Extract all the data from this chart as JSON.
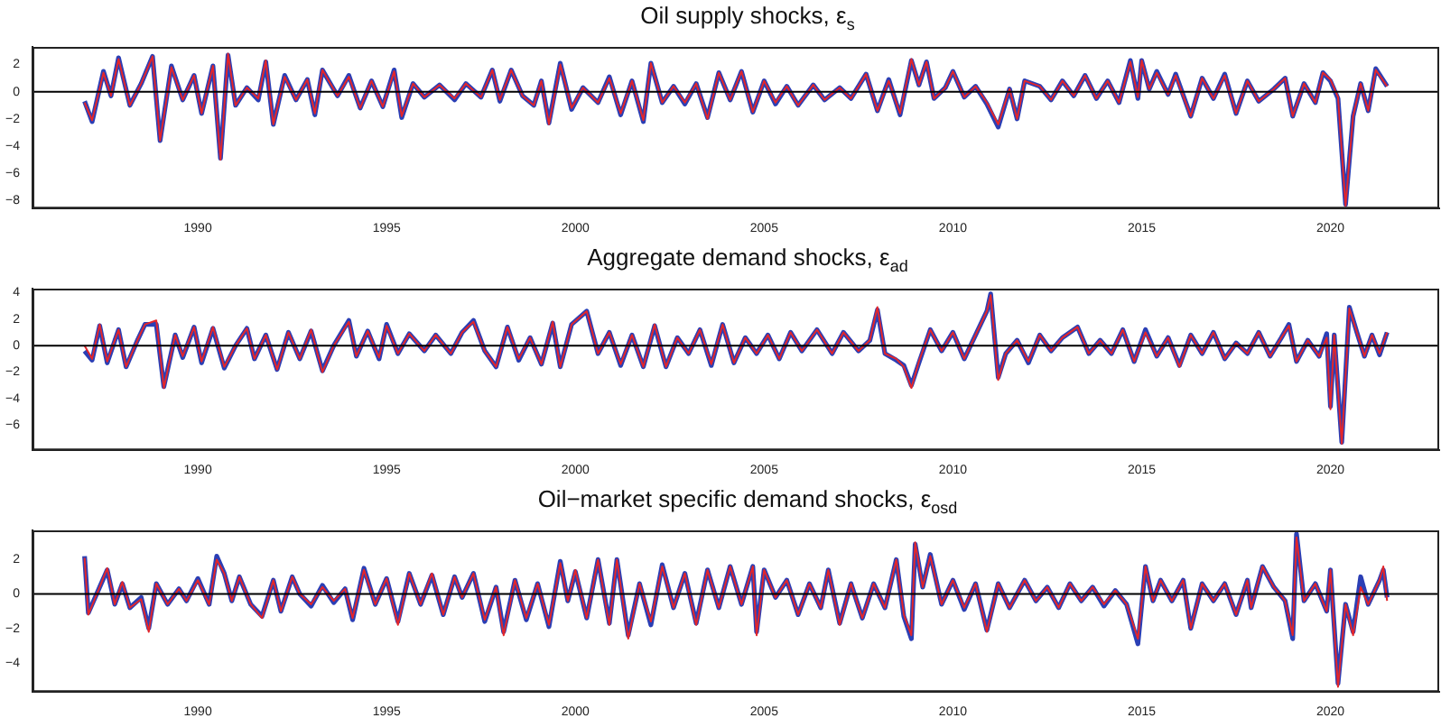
{
  "chart_data": [
    {
      "type": "line",
      "title": "Oil supply shocks, ε$_{s}$",
      "xlim": [
        1985.62,
        2022.88
      ],
      "xticks": [
        1990,
        1995,
        2000,
        2005,
        2010,
        2015,
        2020
      ],
      "ylim": [
        -8.6,
        3.3
      ],
      "yticks": [
        {
          "value": -8,
          "label": "−8"
        },
        {
          "value": -6,
          "label": "−6"
        },
        {
          "value": -4,
          "label": "−4"
        },
        {
          "value": -2,
          "label": "−2"
        },
        0,
        2
      ],
      "grid": false,
      "legend": false,
      "marker": "none",
      "line_style": "solid",
      "ref_lines": [
        {
          "axis": "y",
          "value": 0,
          "color": "#000000"
        }
      ],
      "x": [
        1987.0,
        1987.2,
        1987.5,
        1987.7,
        1987.9,
        1988.2,
        1988.5,
        1988.8,
        1989.0,
        1989.3,
        1989.6,
        1989.9,
        1990.1,
        1990.4,
        1990.6,
        1990.8,
        1991.0,
        1991.3,
        1991.6,
        1991.8,
        1992.0,
        1992.3,
        1992.6,
        1992.9,
        1993.1,
        1993.3,
        1993.7,
        1994.0,
        1994.3,
        1994.6,
        1994.9,
        1995.2,
        1995.4,
        1995.7,
        1996.0,
        1996.4,
        1996.8,
        1997.1,
        1997.5,
        1997.8,
        1998.0,
        1998.3,
        1998.6,
        1998.9,
        1999.1,
        1999.3,
        1999.6,
        1999.9,
        2000.2,
        2000.6,
        2000.9,
        2001.2,
        2001.5,
        2001.8,
        2002.0,
        2002.3,
        2002.6,
        2002.9,
        2003.2,
        2003.5,
        2003.8,
        2004.1,
        2004.4,
        2004.7,
        2005.0,
        2005.3,
        2005.6,
        2005.9,
        2006.3,
        2006.6,
        2007.0,
        2007.3,
        2007.7,
        2008.0,
        2008.3,
        2008.6,
        2008.9,
        2009.1,
        2009.3,
        2009.5,
        2009.8,
        2010.0,
        2010.3,
        2010.6,
        2010.9,
        2011.2,
        2011.5,
        2011.7,
        2011.9,
        2012.3,
        2012.6,
        2012.9,
        2013.2,
        2013.5,
        2013.8,
        2014.1,
        2014.4,
        2014.7,
        2014.9,
        2015.0,
        2015.2,
        2015.4,
        2015.7,
        2015.9,
        2016.3,
        2016.6,
        2016.9,
        2017.2,
        2017.5,
        2017.8,
        2018.1,
        2018.5,
        2018.8,
        2019.0,
        2019.3,
        2019.6,
        2019.8,
        2020.0,
        2020.2,
        2020.4,
        2020.6,
        2020.8,
        2021.0,
        2021.2,
        2021.5
      ],
      "series": [
        {
          "color": "#2b3fb5",
          "values": [
            -0.7,
            -2.2,
            1.5,
            -0.3,
            2.5,
            -1.0,
            0.6,
            2.6,
            -3.6,
            1.9,
            -0.6,
            1.2,
            -1.6,
            1.9,
            -4.9,
            2.7,
            -1.0,
            0.3,
            -0.6,
            2.2,
            -2.4,
            1.2,
            -0.6,
            0.9,
            -1.7,
            1.6,
            -0.3,
            1.2,
            -1.2,
            0.8,
            -1.1,
            1.6,
            -1.9,
            0.6,
            -0.4,
            0.5,
            -0.6,
            0.6,
            -0.4,
            1.6,
            -0.7,
            1.6,
            -0.3,
            -1.0,
            0.8,
            -2.3,
            2.1,
            -1.3,
            0.3,
            -0.8,
            1.1,
            -1.7,
            0.8,
            -2.2,
            2.1,
            -0.8,
            0.4,
            -0.9,
            0.6,
            -1.9,
            1.4,
            -0.6,
            1.5,
            -1.5,
            0.8,
            -0.9,
            0.4,
            -1.0,
            0.5,
            -0.6,
            0.3,
            -0.5,
            1.3,
            -1.4,
            0.9,
            -1.7,
            2.3,
            0.5,
            2.2,
            -0.5,
            0.3,
            1.5,
            -0.4,
            0.4,
            -0.9,
            -2.6,
            0.2,
            -2.0,
            0.8,
            0.4,
            -0.6,
            0.8,
            -0.3,
            1.2,
            -0.5,
            0.8,
            -0.8,
            2.3,
            -0.5,
            2.3,
            0.2,
            1.5,
            -0.2,
            1.3,
            -1.8,
            1.0,
            -0.5,
            1.3,
            -1.6,
            0.8,
            -0.7,
            0.2,
            1.0,
            -1.8,
            0.6,
            -0.8,
            1.4,
            0.8,
            -0.5,
            -8.3,
            -1.8,
            0.6,
            -1.4,
            1.7,
            0.4
          ]
        },
        {
          "color": "#e3262b",
          "values": [
            -0.8,
            -2.1,
            1.4,
            -0.3,
            2.4,
            -1.0,
            0.6,
            2.6,
            -3.6,
            1.8,
            -0.6,
            1.2,
            -1.6,
            1.9,
            -5.0,
            2.8,
            -1.0,
            0.3,
            -0.5,
            2.3,
            -2.4,
            1.1,
            -0.6,
            0.9,
            -1.6,
            1.6,
            -0.3,
            1.1,
            -1.2,
            0.8,
            -1.1,
            1.5,
            -1.8,
            0.6,
            -0.4,
            0.5,
            -0.5,
            0.6,
            -0.4,
            1.6,
            -0.6,
            1.6,
            -0.3,
            -1.0,
            0.8,
            -2.4,
            2.0,
            -1.2,
            0.3,
            -0.8,
            1.0,
            -1.6,
            0.8,
            -2.1,
            2.1,
            -0.8,
            0.4,
            -0.8,
            0.6,
            -2.0,
            1.4,
            -0.6,
            1.5,
            -1.5,
            0.8,
            -0.8,
            0.4,
            -1.0,
            0.5,
            -0.6,
            0.3,
            -0.5,
            1.3,
            -1.4,
            0.8,
            -1.6,
            2.4,
            0.5,
            2.2,
            -0.5,
            0.3,
            1.5,
            -0.4,
            0.4,
            -0.8,
            -2.4,
            0.2,
            -2.0,
            0.8,
            0.4,
            -0.6,
            0.8,
            -0.3,
            1.2,
            -0.5,
            0.8,
            -0.8,
            2.2,
            -0.4,
            2.3,
            0.2,
            1.4,
            -0.2,
            1.2,
            -1.8,
            1.0,
            -0.5,
            1.2,
            -1.6,
            0.8,
            -0.7,
            0.2,
            1.0,
            -1.8,
            0.6,
            -0.8,
            1.4,
            0.9,
            -0.4,
            -8.4,
            -1.8,
            0.6,
            -1.4,
            1.6,
            0.4
          ]
        }
      ]
    },
    {
      "type": "line",
      "title": "Aggregate demand shocks, ε$_{ad}$",
      "xlim": [
        1985.62,
        2022.88
      ],
      "xticks": [
        1990,
        1995,
        2000,
        2005,
        2010,
        2015,
        2020
      ],
      "ylim": [
        -7.9,
        4.3
      ],
      "yticks": [
        {
          "value": -6,
          "label": "−6"
        },
        {
          "value": -4,
          "label": "−4"
        },
        {
          "value": -2,
          "label": "−2"
        },
        0,
        2,
        4
      ],
      "grid": false,
      "legend": false,
      "marker": "none",
      "line_style": "solid",
      "ref_lines": [
        {
          "axis": "y",
          "value": 0,
          "color": "#000000"
        }
      ],
      "x": [
        1987.0,
        1987.2,
        1987.4,
        1987.6,
        1987.9,
        1988.1,
        1988.4,
        1988.6,
        1988.9,
        1989.1,
        1989.4,
        1989.6,
        1989.9,
        1990.1,
        1990.4,
        1990.7,
        1991.0,
        1991.3,
        1991.5,
        1991.8,
        1992.1,
        1992.4,
        1992.7,
        1993.0,
        1993.3,
        1993.6,
        1994.0,
        1994.2,
        1994.5,
        1994.8,
        1995.0,
        1995.3,
        1995.6,
        1996.0,
        1996.3,
        1996.7,
        1997.0,
        1997.3,
        1997.6,
        1997.9,
        1998.2,
        1998.5,
        1998.8,
        1999.1,
        1999.4,
        1999.6,
        1999.9,
        2000.3,
        2000.6,
        2000.9,
        2001.2,
        2001.5,
        2001.8,
        2002.1,
        2002.4,
        2002.7,
        2003.0,
        2003.3,
        2003.6,
        2003.9,
        2004.2,
        2004.5,
        2004.8,
        2005.1,
        2005.4,
        2005.7,
        2006.0,
        2006.4,
        2006.8,
        2007.1,
        2007.5,
        2007.8,
        2008.0,
        2008.2,
        2008.5,
        2008.7,
        2008.9,
        2009.1,
        2009.4,
        2009.7,
        2010.0,
        2010.3,
        2010.6,
        2010.9,
        2011.0,
        2011.2,
        2011.4,
        2011.7,
        2012.0,
        2012.3,
        2012.6,
        2012.9,
        2013.3,
        2013.6,
        2013.9,
        2014.2,
        2014.5,
        2014.8,
        2015.1,
        2015.4,
        2015.7,
        2016.0,
        2016.3,
        2016.6,
        2016.9,
        2017.2,
        2017.5,
        2017.8,
        2018.1,
        2018.4,
        2018.7,
        2018.9,
        2019.1,
        2019.4,
        2019.7,
        2019.9,
        2020.0,
        2020.1,
        2020.3,
        2020.5,
        2020.7,
        2020.9,
        2021.1,
        2021.3,
        2021.5
      ],
      "series": [
        {
          "color": "#2b3fb5",
          "values": [
            -0.4,
            -1.1,
            1.5,
            -1.3,
            1.2,
            -1.6,
            0.4,
            1.6,
            1.6,
            -3.1,
            0.8,
            -0.9,
            1.4,
            -1.3,
            1.3,
            -1.7,
            0.0,
            1.3,
            -1.0,
            0.8,
            -1.8,
            1.0,
            -1.0,
            1.1,
            -1.9,
            0.0,
            1.9,
            -0.8,
            1.1,
            -1.0,
            1.6,
            -0.6,
            0.9,
            -0.4,
            0.8,
            -0.6,
            1.0,
            1.9,
            -0.4,
            -1.6,
            1.4,
            -1.1,
            0.6,
            -1.4,
            1.7,
            -1.6,
            1.6,
            2.6,
            -0.6,
            1.0,
            -1.5,
            0.8,
            -1.6,
            1.5,
            -1.6,
            0.6,
            -0.6,
            1.2,
            -1.5,
            1.6,
            -1.3,
            0.6,
            -0.6,
            0.8,
            -1.0,
            1.0,
            -0.4,
            1.2,
            -0.6,
            1.0,
            -0.4,
            0.4,
            2.7,
            -0.6,
            -1.1,
            -1.5,
            -3.0,
            -1.3,
            1.2,
            -0.4,
            1.0,
            -1.0,
            0.8,
            2.6,
            3.9,
            -2.4,
            -0.6,
            0.4,
            -1.3,
            0.8,
            -0.4,
            0.6,
            1.4,
            -0.6,
            0.4,
            -0.6,
            1.2,
            -1.2,
            1.2,
            -0.8,
            0.6,
            -1.5,
            0.8,
            -0.6,
            1.0,
            -1.0,
            0.2,
            -0.6,
            1.0,
            -0.8,
            0.6,
            1.6,
            -1.2,
            0.4,
            -0.8,
            0.9,
            -4.6,
            0.8,
            -7.3,
            2.9,
            1.0,
            -0.8,
            0.8,
            -0.7,
            1.0
          ]
        },
        {
          "color": "#e3262b",
          "values": [
            0.0,
            -1.0,
            1.6,
            -1.2,
            1.2,
            -1.6,
            0.4,
            1.6,
            1.9,
            -3.2,
            0.8,
            -0.8,
            1.4,
            -1.2,
            1.4,
            -1.6,
            0.0,
            1.3,
            -1.0,
            0.8,
            -1.8,
            1.0,
            -1.0,
            1.2,
            -2.0,
            0.0,
            1.8,
            -0.8,
            1.1,
            -0.9,
            1.5,
            -0.6,
            0.9,
            -0.4,
            0.8,
            -0.6,
            1.0,
            1.8,
            -0.4,
            -1.6,
            1.4,
            -1.0,
            0.6,
            -1.4,
            1.8,
            -1.6,
            1.6,
            2.6,
            -0.6,
            1.0,
            -1.4,
            0.8,
            -1.6,
            1.6,
            -1.6,
            0.6,
            -0.6,
            1.2,
            -1.4,
            1.6,
            -1.3,
            0.6,
            -0.6,
            0.8,
            -1.0,
            1.0,
            -0.4,
            1.2,
            -0.6,
            1.0,
            -0.4,
            0.4,
            2.9,
            -0.6,
            -1.0,
            -1.6,
            -3.2,
            -1.2,
            1.2,
            -0.4,
            1.0,
            -1.0,
            0.8,
            2.6,
            3.8,
            -2.6,
            -0.6,
            0.4,
            -1.2,
            0.8,
            -0.4,
            0.6,
            1.4,
            -0.6,
            0.4,
            -0.6,
            1.2,
            -1.2,
            1.0,
            -0.8,
            0.6,
            -1.6,
            0.8,
            -0.6,
            1.0,
            -1.0,
            0.2,
            -0.6,
            1.0,
            -0.8,
            0.6,
            1.5,
            -1.2,
            0.4,
            -0.8,
            0.6,
            -4.8,
            0.8,
            -7.4,
            2.8,
            1.0,
            -0.8,
            0.8,
            -0.6,
            1.0
          ]
        }
      ]
    },
    {
      "type": "line",
      "title": "Oil−market specific demand shocks, ε$_{osd}$",
      "xlim": [
        1985.62,
        2022.88
      ],
      "xticks": [
        1990,
        1995,
        2000,
        2005,
        2010,
        2015,
        2020
      ],
      "ylim": [
        -5.7,
        3.7
      ],
      "yticks": [
        {
          "value": -4,
          "label": "−4"
        },
        {
          "value": -2,
          "label": "−2"
        },
        0,
        2
      ],
      "grid": false,
      "legend": false,
      "marker": "none",
      "line_style": "solid",
      "ref_lines": [
        {
          "axis": "y",
          "value": 0,
          "color": "#000000"
        }
      ],
      "x": [
        1987.0,
        1987.1,
        1987.4,
        1987.6,
        1987.8,
        1988.0,
        1988.2,
        1988.5,
        1988.7,
        1988.9,
        1989.2,
        1989.5,
        1989.7,
        1990.0,
        1990.3,
        1990.5,
        1990.7,
        1990.9,
        1991.1,
        1991.4,
        1991.7,
        1992.0,
        1992.2,
        1992.5,
        1992.7,
        1993.0,
        1993.3,
        1993.6,
        1993.9,
        1994.1,
        1994.4,
        1994.7,
        1995.0,
        1995.3,
        1995.6,
        1995.9,
        1996.2,
        1996.5,
        1996.8,
        1997.0,
        1997.3,
        1997.6,
        1997.9,
        1998.1,
        1998.4,
        1998.7,
        1999.0,
        1999.3,
        1999.6,
        1999.8,
        2000.0,
        2000.3,
        2000.6,
        2000.9,
        2001.1,
        2001.4,
        2001.7,
        2002.0,
        2002.3,
        2002.6,
        2002.9,
        2003.2,
        2003.5,
        2003.8,
        2004.1,
        2004.4,
        2004.7,
        2004.8,
        2005.0,
        2005.3,
        2005.6,
        2005.9,
        2006.2,
        2006.5,
        2006.7,
        2007.0,
        2007.3,
        2007.6,
        2007.9,
        2008.2,
        2008.5,
        2008.7,
        2008.9,
        2009.0,
        2009.2,
        2009.4,
        2009.7,
        2010.0,
        2010.3,
        2010.6,
        2010.9,
        2011.2,
        2011.5,
        2011.9,
        2012.2,
        2012.5,
        2012.8,
        2013.1,
        2013.4,
        2013.7,
        2014.0,
        2014.3,
        2014.6,
        2014.9,
        2015.1,
        2015.3,
        2015.5,
        2015.8,
        2016.1,
        2016.3,
        2016.6,
        2016.9,
        2017.2,
        2017.5,
        2017.8,
        2017.9,
        2018.2,
        2018.5,
        2018.8,
        2019.0,
        2019.1,
        2019.3,
        2019.6,
        2019.9,
        2020.0,
        2020.2,
        2020.4,
        2020.6,
        2020.8,
        2021.0,
        2021.3,
        2021.4,
        2021.5
      ],
      "series": [
        {
          "color": "#2b3fb5",
          "values": [
            2.2,
            -1.1,
            0.4,
            1.4,
            -0.6,
            0.6,
            -0.8,
            -0.2,
            -2.0,
            0.6,
            -0.6,
            0.3,
            -0.4,
            0.9,
            -0.6,
            2.2,
            1.2,
            -0.4,
            1.0,
            -0.6,
            -1.3,
            0.8,
            -1.0,
            1.0,
            0.0,
            -0.7,
            0.5,
            -0.5,
            0.3,
            -1.5,
            1.5,
            -0.6,
            0.9,
            -1.6,
            1.2,
            -0.6,
            1.1,
            -1.2,
            1.0,
            -0.2,
            1.2,
            -1.6,
            0.4,
            -2.2,
            0.8,
            -1.5,
            0.6,
            -1.9,
            1.9,
            -0.4,
            1.3,
            -1.4,
            2.0,
            -1.7,
            2.0,
            -2.4,
            0.6,
            -1.8,
            1.7,
            -0.8,
            1.2,
            -1.7,
            1.4,
            -0.8,
            1.6,
            -0.6,
            1.6,
            -2.2,
            1.4,
            -0.2,
            0.8,
            -1.2,
            0.6,
            -0.8,
            1.4,
            -1.7,
            0.6,
            -1.4,
            0.6,
            -0.8,
            2.0,
            -1.3,
            -2.6,
            2.9,
            0.4,
            2.3,
            -0.6,
            0.8,
            -0.9,
            0.6,
            -2.1,
            0.6,
            -0.8,
            0.8,
            -0.4,
            0.4,
            -0.8,
            0.6,
            -0.4,
            0.4,
            -0.7,
            0.2,
            -0.6,
            -2.9,
            1.6,
            -0.4,
            0.8,
            -0.4,
            0.8,
            -2.0,
            0.6,
            -0.4,
            0.6,
            -1.2,
            0.8,
            -0.8,
            1.6,
            0.4,
            -0.4,
            -2.6,
            3.5,
            -0.4,
            0.6,
            -1.0,
            1.4,
            -5.2,
            -0.6,
            -2.2,
            1.0,
            -0.6,
            0.8,
            1.4,
            -0.2
          ]
        },
        {
          "color": "#e3262b",
          "values": [
            2.1,
            -1.2,
            0.4,
            1.5,
            -0.6,
            0.7,
            -0.8,
            -0.3,
            -2.2,
            0.6,
            -0.6,
            0.3,
            -0.4,
            0.8,
            -0.6,
            2.0,
            1.2,
            -0.4,
            1.0,
            -0.6,
            -1.4,
            0.8,
            -1.0,
            1.0,
            0.0,
            -0.6,
            0.4,
            -0.4,
            0.3,
            -1.4,
            1.4,
            -0.6,
            0.9,
            -1.8,
            1.2,
            -0.6,
            1.2,
            -1.2,
            1.0,
            -0.2,
            1.2,
            -1.5,
            0.4,
            -2.4,
            0.8,
            -1.4,
            0.6,
            -1.8,
            1.8,
            -0.4,
            1.4,
            -1.4,
            2.0,
            -1.8,
            2.0,
            -2.6,
            0.6,
            -1.6,
            1.6,
            -0.8,
            1.2,
            -1.8,
            1.4,
            -0.8,
            1.6,
            -0.6,
            1.6,
            -2.4,
            1.4,
            -0.2,
            0.8,
            -1.2,
            0.6,
            -0.8,
            1.4,
            -1.8,
            0.6,
            -1.4,
            0.6,
            -0.8,
            2.0,
            -1.2,
            -2.4,
            3.0,
            0.4,
            2.2,
            -0.6,
            0.8,
            -0.8,
            0.6,
            -2.2,
            0.6,
            -0.8,
            0.8,
            -0.4,
            0.4,
            -0.8,
            0.6,
            -0.4,
            0.4,
            -0.6,
            0.2,
            -0.6,
            -2.6,
            1.6,
            -0.4,
            0.8,
            -0.4,
            0.8,
            -2.0,
            0.6,
            -0.4,
            0.6,
            -1.2,
            0.8,
            -0.8,
            1.6,
            0.4,
            -0.4,
            -2.4,
            3.3,
            -0.4,
            0.6,
            -1.0,
            1.4,
            -5.4,
            -0.6,
            -2.4,
            0.4,
            -0.6,
            0.8,
            1.6,
            -0.4
          ]
        }
      ]
    }
  ]
}
